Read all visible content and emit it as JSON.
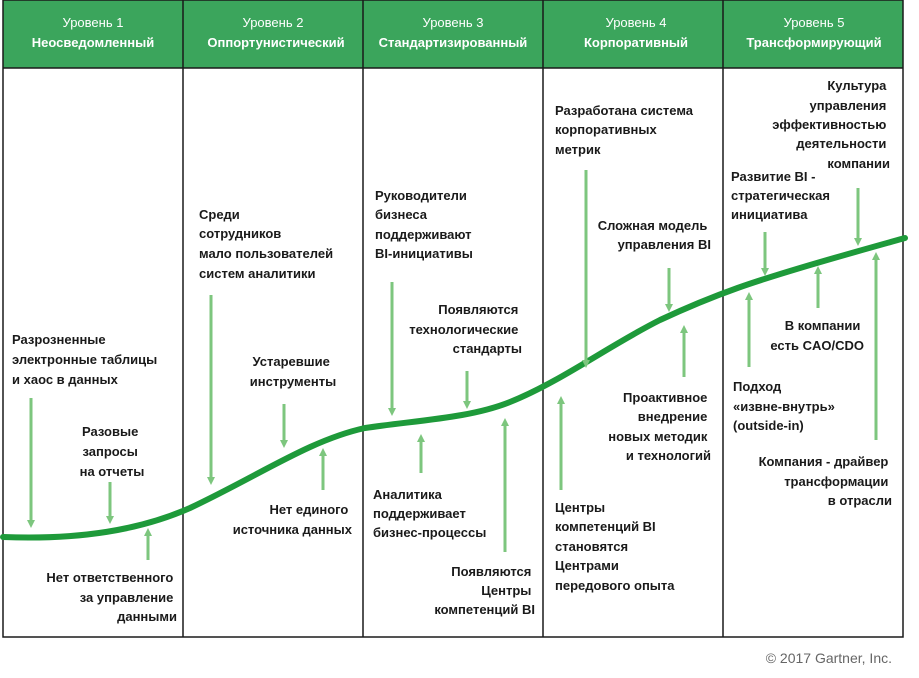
{
  "levels": [
    {
      "title": "Уровень 1",
      "name": "Неосведомленный"
    },
    {
      "title": "Уровень 2",
      "name": "Оппортунистический"
    },
    {
      "title": "Уровень 3",
      "name": "Стандартизированный"
    },
    {
      "title": "Уровень 4",
      "name": "Корпоративный"
    },
    {
      "title": "Уровень 5",
      "name": "Трансформирующий"
    }
  ],
  "colors": {
    "header": "#3ba55c",
    "curve": "#1e9a3a",
    "arrow": "#7dc67e",
    "border": "#1a1a1a"
  },
  "labels": {
    "l1_spreadsheets": [
      "Разрозненные",
      "электронные таблицы",
      "и  хаос в  данных"
    ],
    "l1_adhoc": [
      "Разовые",
      "запросы",
      "на отчеты"
    ],
    "l1_no_owner": [
      "Нет ответственного",
      "за управление",
      "данными"
    ],
    "l2_few_users": [
      "Среди",
      "сотрудников",
      "мало пользователей",
      "систем аналитики"
    ],
    "l2_old_tools": [
      "Устаревшие",
      "инструменты"
    ],
    "l2_no_source": [
      "Нет единого",
      "источника данных"
    ],
    "l3_leaders": [
      "Руководители",
      "бизнеса",
      "поддерживают",
      "BI-инициативы"
    ],
    "l3_standards": [
      "Появляются",
      "технологические",
      "стандарты"
    ],
    "l3_analytics": [
      "Аналитика",
      "поддерживает",
      "бизнес-процессы"
    ],
    "l3_centers": [
      "Появляются",
      "Центры",
      "компетенций BI"
    ],
    "l4_metrics": [
      "Разработана система",
      "корпоративных",
      "метрик"
    ],
    "l4_model": [
      "Сложная модель",
      "управления BI"
    ],
    "l4_proactive": [
      "Проактивное",
      "внедрение",
      "новых методик",
      "и технологий"
    ],
    "l4_centers": [
      "Центры",
      "компетенций BI",
      "становятся",
      "Центрами",
      "передового опыта"
    ],
    "l5_culture": [
      "Культура",
      "управления",
      "эффективностью",
      "деятельности",
      "компании"
    ],
    "l5_strategic": [
      "Развитие BI -",
      "стратегическая",
      "инициатива"
    ],
    "l5_cao": [
      "В компании",
      "есть CAO/CDO"
    ],
    "l5_outside": [
      "Подход",
      "«извне-внутрь»",
      "(outside-in)"
    ],
    "l5_driver": [
      "Компания - драйвер",
      "трансформации",
      "в отрасли"
    ]
  },
  "copyright": "© 2017 Gartner, Inc."
}
